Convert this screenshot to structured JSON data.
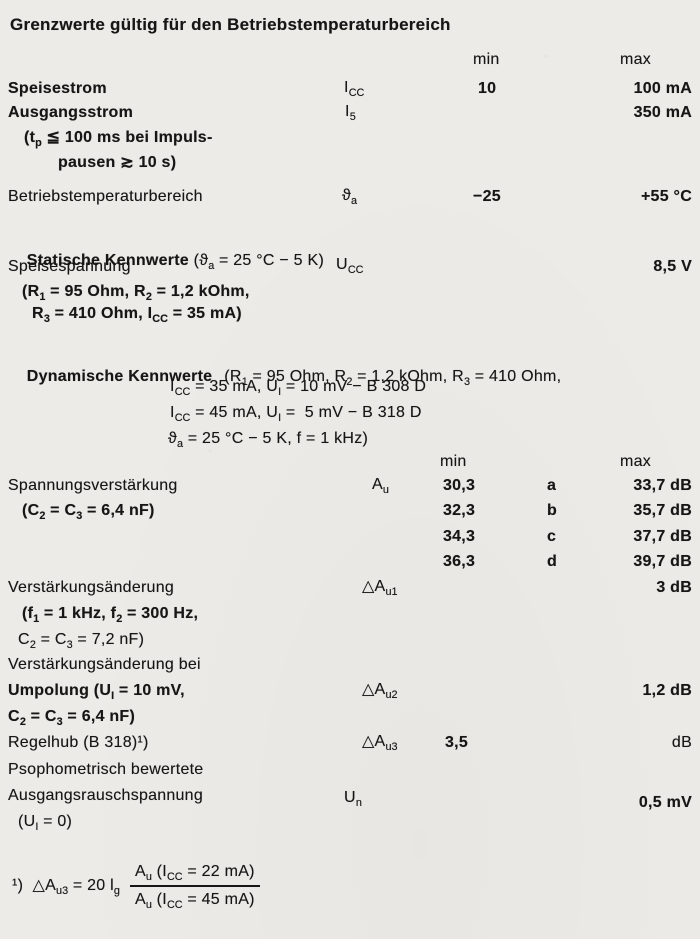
{
  "paper_color": "#edebe7",
  "ink_color": "#161616",
  "grenzwerte": {
    "heading": "Grenzwerte gültig für den Betriebstemperaturbereich",
    "col_min": "min",
    "col_max": "max",
    "speisestrom": {
      "label": "Speisestrom",
      "symbol": "I~CC~",
      "min": "10",
      "max": "100 mA"
    },
    "ausgangsstrom": {
      "label": "Ausgangsstrom",
      "symbol": "I~5~",
      "max": "350 mA",
      "cond_line1": "(t~p~ ≦ 100 ms bei Impuls-",
      "cond_line2": "pausen ≳ 10 s)"
    },
    "betriebstemperatur": {
      "label": "Betriebstemperaturbereich",
      "symbol": "ϑ~a~",
      "min": "−25",
      "max": "+55 °C"
    }
  },
  "statische": {
    "heading": "Statische Kennwerte",
    "heading_cond": " (ϑ~a~ = 25 °C − 5 K)",
    "speisespannung": {
      "label": "Speisespannung",
      "symbol": "U~CC~",
      "max": "8,5 V",
      "cond_line1": "(R~1~ = 95 Ohm, R~2~ = 1,2 kOhm,",
      "cond_line2": "R~3~ = 410 Ohm, I~CC~ = 35 mA)"
    }
  },
  "dynamische": {
    "heading": "Dynamische Kennwerte",
    "cond_line1": "(R~1~ = 95 Ohm, R~2~ = 1,2 kOhm, R~3~ = 410 Ohm,",
    "cond_line2": "I~CC~ = 35 mA, U~I~ = 10 mV − B 308 D",
    "cond_line3": "I~CC~ = 45 mA, U~I~ =  5 mV − B 318 D",
    "cond_line4": "ϑ~a~ = 25 °C − 5 K, f = 1 kHz)",
    "col_min": "min",
    "col_max": "max",
    "spannungsverstaerkung": {
      "label": "Spannungsverstärkung",
      "cond": "(C~2~ = C~3~ = 6,4 nF)",
      "symbol": "A~u~",
      "variants": [
        {
          "min": "30,3",
          "grade": "a",
          "max": "33,7 dB"
        },
        {
          "min": "32,3",
          "grade": "b",
          "max": "35,7 dB"
        },
        {
          "min": "34,3",
          "grade": "c",
          "max": "37,7 dB"
        },
        {
          "min": "36,3",
          "grade": "d",
          "max": "39,7 dB"
        }
      ]
    },
    "verstaerkungsaenderung1": {
      "label": "Verstärkungsänderung",
      "symbol": "△A~u1~",
      "max": "3 dB",
      "cond_line1": "(f~1~ = 1 kHz, f~2~ = 300 Hz,",
      "cond_line2": "C~2~ = C~3~ = 7,2 nF)"
    },
    "verstaerkungsaenderung2": {
      "label_line1": "Verstärkungsänderung bei",
      "label_line2": "Umpolung (U~I~ = 10 mV,",
      "cond": "C~2~ = C~3~ = 6,4 nF)",
      "symbol": "△A~u2~",
      "max": "1,2 dB"
    },
    "regelhub": {
      "label": "Regelhub (B 318)¹)",
      "symbol": "△A~u3~",
      "min": "3,5",
      "max_unit": "dB"
    },
    "rauschspannung": {
      "label_line1": "Psophometrisch bewertete",
      "label_line2": "Ausgangsrauschspannung",
      "cond": "(U~I~ = 0)",
      "symbol": "U~n~",
      "max": "0,5 mV"
    }
  },
  "footnote": {
    "prefix": "¹)  △A~u3~ = 20 l~g~",
    "numerator": "A~u~ (I~CC~ = 22 mA)",
    "denominator": "A~u~ (I~CC~ = 45 mA)"
  }
}
